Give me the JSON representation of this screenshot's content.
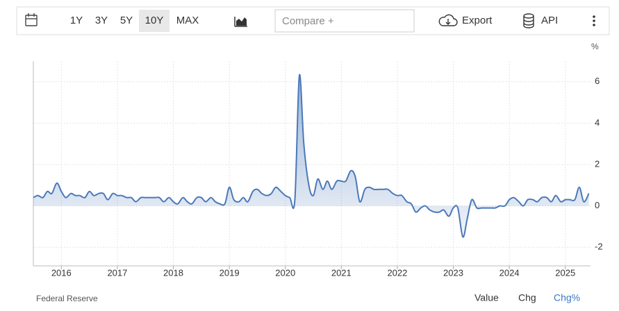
{
  "toolbar": {
    "periods": [
      "1Y",
      "3Y",
      "5Y",
      "10Y",
      "MAX"
    ],
    "active_period": "10Y",
    "compare": "Compare +",
    "export": "Export",
    "api": "API"
  },
  "chart_data": {
    "type": "line",
    "y_unit": "%",
    "color": "#4a78b8",
    "grid": true,
    "x": [
      2015.5,
      2015.58,
      2015.67,
      2015.75,
      2015.83,
      2015.92,
      2016.0,
      2016.08,
      2016.17,
      2016.25,
      2016.33,
      2016.42,
      2016.5,
      2016.58,
      2016.67,
      2016.75,
      2016.83,
      2016.92,
      2017.0,
      2017.08,
      2017.17,
      2017.25,
      2017.33,
      2017.42,
      2017.5,
      2017.58,
      2017.67,
      2017.75,
      2017.83,
      2017.92,
      2018.0,
      2018.08,
      2018.17,
      2018.25,
      2018.33,
      2018.42,
      2018.5,
      2018.58,
      2018.67,
      2018.75,
      2018.83,
      2018.92,
      2019.0,
      2019.08,
      2019.17,
      2019.25,
      2019.33,
      2019.42,
      2019.5,
      2019.58,
      2019.67,
      2019.75,
      2019.83,
      2019.92,
      2020.0,
      2020.08,
      2020.17,
      2020.25,
      2020.33,
      2020.42,
      2020.5,
      2020.58,
      2020.67,
      2020.75,
      2020.83,
      2020.92,
      2021.0,
      2021.08,
      2021.17,
      2021.25,
      2021.33,
      2021.42,
      2021.5,
      2021.58,
      2021.67,
      2021.75,
      2021.83,
      2021.92,
      2022.0,
      2022.08,
      2022.17,
      2022.25,
      2022.33,
      2022.42,
      2022.5,
      2022.58,
      2022.67,
      2022.75,
      2022.83,
      2022.92,
      2023.0,
      2023.08,
      2023.17,
      2023.25,
      2023.33,
      2023.42,
      2023.5,
      2023.58,
      2023.67,
      2023.75,
      2023.83,
      2023.92,
      2024.0,
      2024.08,
      2024.17,
      2024.25,
      2024.33,
      2024.42,
      2024.5,
      2024.58,
      2024.67,
      2024.75,
      2024.83,
      2024.92,
      2025.0,
      2025.08,
      2025.17,
      2025.25,
      2025.33,
      2025.42
    ],
    "values": [
      0.4,
      0.5,
      0.4,
      0.7,
      0.6,
      1.1,
      0.7,
      0.4,
      0.6,
      0.5,
      0.5,
      0.4,
      0.7,
      0.5,
      0.6,
      0.6,
      0.3,
      0.6,
      0.5,
      0.5,
      0.4,
      0.4,
      0.2,
      0.4,
      0.4,
      0.4,
      0.4,
      0.4,
      0.2,
      0.4,
      0.2,
      0.1,
      0.4,
      0.2,
      0.1,
      0.4,
      0.4,
      0.2,
      0.4,
      0.2,
      0.1,
      0.1,
      0.9,
      0.3,
      0.2,
      0.4,
      0.2,
      0.7,
      0.8,
      0.6,
      0.5,
      0.6,
      0.9,
      0.7,
      0.5,
      0.4,
      0.3,
      6.3,
      3.0,
      1.0,
      0.5,
      1.3,
      0.8,
      1.2,
      0.8,
      1.2,
      1.2,
      1.2,
      1.7,
      1.4,
      0.2,
      0.8,
      0.9,
      0.8,
      0.8,
      0.8,
      0.8,
      0.6,
      0.5,
      0.5,
      0.2,
      0.1,
      -0.3,
      -0.1,
      0.0,
      -0.2,
      -0.3,
      -0.3,
      -0.2,
      -0.5,
      -0.1,
      -0.1,
      -1.5,
      -0.6,
      0.3,
      -0.1,
      -0.1,
      -0.1,
      -0.1,
      -0.1,
      0.0,
      0.0,
      0.3,
      0.4,
      0.2,
      0.0,
      0.3,
      0.3,
      0.2,
      0.4,
      0.4,
      0.2,
      0.5,
      0.2,
      0.3,
      0.3,
      0.3,
      0.9,
      0.2,
      0.6
    ],
    "xlim": [
      2015.5,
      2025.45
    ],
    "xticks": [
      2016,
      2017,
      2018,
      2019,
      2020,
      2021,
      2022,
      2023,
      2024,
      2025
    ],
    "ylim": [
      -2.9,
      7
    ],
    "yticks": [
      -2,
      0,
      2,
      4,
      6
    ]
  },
  "footer": {
    "source": "Federal Reserve",
    "tabs": [
      "Value",
      "Chg",
      "Chg%"
    ]
  }
}
